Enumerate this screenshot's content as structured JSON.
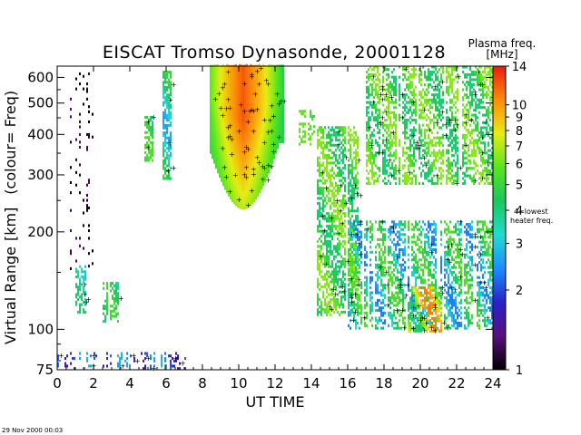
{
  "header": {
    "title": "EISCAT Tromso Dynasonde,  20001128",
    "colorbar_title_line1": "Plasma freq.",
    "colorbar_title_line2": "[MHz]"
  },
  "footer": {
    "timestamp": "29 Nov 2000 00:03"
  },
  "chart_data": {
    "type": "heatmap",
    "title": "EISCAT Tromso Dynasonde,  20001128",
    "xlabel": "UT TIME",
    "ylabel_part1": "Virtual Range",
    "ylabel_unit": "[km]",
    "ylabel_part2": "(colour= Freq)",
    "xlim": [
      0,
      24
    ],
    "ylim": [
      75,
      650
    ],
    "y_scale": "log",
    "x_ticks": [
      0,
      2,
      4,
      6,
      8,
      10,
      12,
      14,
      16,
      18,
      20,
      22,
      24
    ],
    "y_ticks": [
      75,
      100,
      200,
      300,
      400,
      500,
      600
    ],
    "colorbar": {
      "label": "Plasma freq. [MHz]",
      "scale": "log",
      "range": [
        1,
        14
      ],
      "ticks": [
        1,
        2,
        3,
        4,
        5,
        6,
        7,
        8,
        9,
        10,
        14
      ],
      "colors": [
        "#000000",
        "#5a0f7d",
        "#2a22c8",
        "#1c8cff",
        "#22dcd0",
        "#19c85a",
        "#5ae61e",
        "#e6ec14",
        "#ff8c0a",
        "#e61e0a"
      ],
      "annotation_line1": "4=lowest",
      "annotation_line2": "heater freq."
    },
    "regions": [
      {
        "t0": 8.4,
        "t1": 12.4,
        "h0": 235,
        "h1": 650,
        "fmin": 4.5,
        "fmax": 12,
        "shape": "dome",
        "peak_t": 10.2
      },
      {
        "t0": 17.0,
        "t1": 24.0,
        "h0": 280,
        "h1": 650,
        "fmin": 4.0,
        "fmax": 6.5,
        "shape": "sparse",
        "density": 0.5
      },
      {
        "t0": 14.3,
        "t1": 16.6,
        "h0": 110,
        "h1": 420,
        "fmin": 4.0,
        "fmax": 6.5,
        "shape": "sparse",
        "density": 0.55
      },
      {
        "t0": 16.0,
        "t1": 24.0,
        "h0": 100,
        "h1": 215,
        "fmin": 2.3,
        "fmax": 5.5,
        "shape": "sparse",
        "density": 0.5
      },
      {
        "t0": 19.3,
        "t1": 21.2,
        "h0": 98,
        "h1": 135,
        "fmin": 4.0,
        "fmax": 11,
        "shape": "sparse",
        "density": 0.55
      },
      {
        "t0": 5.8,
        "t1": 6.2,
        "h0": 290,
        "h1": 620,
        "fmin": 2.6,
        "fmax": 5.0,
        "shape": "sparse",
        "density": 0.7
      },
      {
        "t0": 4.8,
        "t1": 5.2,
        "h0": 330,
        "h1": 450,
        "fmin": 3.5,
        "fmax": 5.5,
        "shape": "sparse",
        "density": 0.7
      },
      {
        "t0": 1.0,
        "t1": 1.8,
        "h0": 112,
        "h1": 155,
        "fmin": 2.8,
        "fmax": 4.2,
        "shape": "sparse",
        "density": 0.55
      },
      {
        "t0": 2.5,
        "t1": 3.4,
        "h0": 105,
        "h1": 140,
        "fmin": 3.2,
        "fmax": 5.2,
        "shape": "sparse",
        "density": 0.55
      },
      {
        "t0": 0.0,
        "t1": 7.0,
        "h0": 75,
        "h1": 85,
        "fmin": 1.6,
        "fmax": 2.8,
        "shape": "sparse",
        "density": 0.3
      },
      {
        "t0": 13.3,
        "t1": 14.1,
        "h0": 370,
        "h1": 470,
        "fmin": 5.0,
        "fmax": 6.0,
        "shape": "sparse",
        "density": 0.4
      },
      {
        "t0": 0.6,
        "t1": 2.2,
        "h0": 150,
        "h1": 640,
        "fmin": 1.0,
        "fmax": 1.3,
        "shape": "dots",
        "density": 0.12
      }
    ]
  }
}
